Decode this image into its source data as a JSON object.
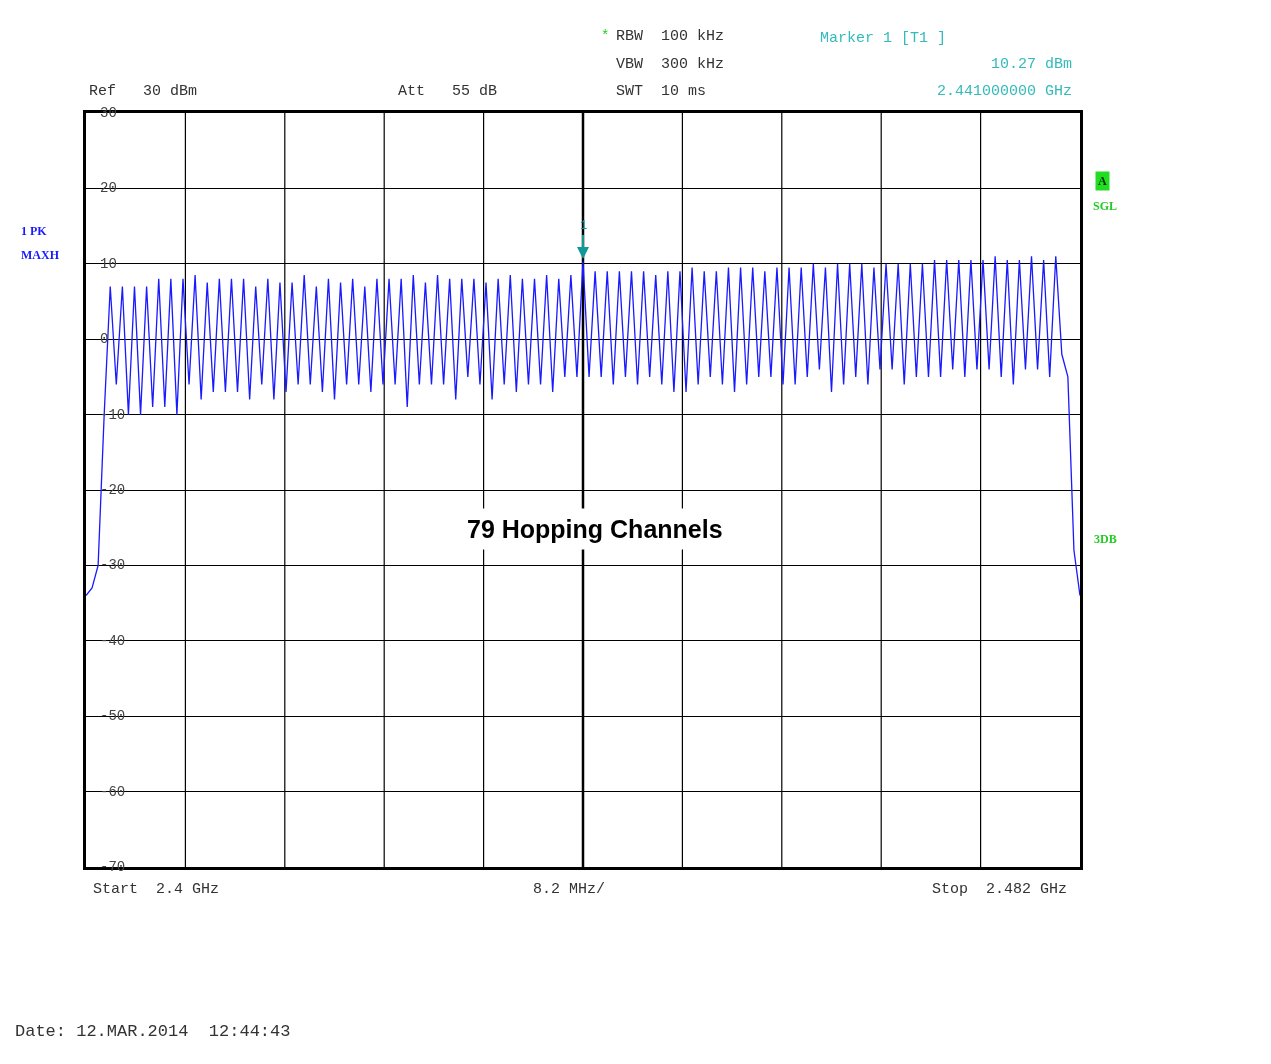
{
  "chart_data": {
    "type": "line",
    "categories": [
      null,
      null,
      null,
      null,
      null,
      null,
      null,
      null,
      null,
      null,
      null,
      null,
      null,
      null,
      null,
      null,
      null,
      null,
      null,
      null,
      null,
      null,
      null,
      null,
      null,
      null,
      null,
      null,
      null,
      null,
      null,
      null,
      null,
      null,
      null,
      null,
      null,
      null,
      null,
      null,
      null,
      null,
      null,
      null,
      null,
      null,
      null,
      null,
      null,
      null,
      null,
      null,
      null,
      null,
      null,
      null,
      null,
      null,
      null,
      null,
      null,
      null,
      null,
      null,
      null,
      null,
      null,
      null,
      null,
      null,
      null,
      null,
      null,
      null,
      null,
      null,
      null,
      null,
      null,
      null,
      null,
      null,
      null,
      null,
      null,
      null,
      null,
      null,
      null,
      null,
      null,
      null,
      null,
      null,
      null,
      null,
      null,
      null,
      null,
      null,
      null,
      null,
      null,
      null,
      null,
      null,
      null,
      null,
      null,
      null,
      null,
      null,
      null,
      null,
      null,
      null,
      null,
      null,
      null,
      null,
      null,
      null,
      null,
      null,
      null,
      null,
      null,
      null,
      null,
      null,
      null,
      null,
      null,
      null,
      null,
      null,
      null,
      null,
      null,
      null,
      null,
      null,
      null,
      null,
      null,
      null,
      null,
      null,
      null,
      null,
      null,
      null,
      null,
      null,
      null,
      null,
      null,
      null,
      null,
      null,
      null,
      null,
      null,
      null,
      null
    ],
    "ylim": [
      -70,
      30
    ],
    "yticks": [
      30,
      20,
      10,
      0,
      -10,
      -20,
      -30,
      -40,
      -50,
      -60,
      -70
    ],
    "tick_labels": "y",
    "grid": true,
    "marker": "none",
    "line_style": "solid",
    "series": [
      {
        "color": "#1a1aff",
        "values": [
          -34,
          -33,
          -30,
          -10,
          7,
          -6,
          7,
          -10,
          7,
          -10,
          7,
          -9,
          8,
          -9,
          8,
          -10,
          8,
          -6,
          8.5,
          -8,
          7.5,
          -7,
          8,
          -7,
          8,
          -7,
          8,
          -8,
          7,
          -6,
          8,
          -8,
          7.5,
          -7,
          7.5,
          -6,
          8.5,
          -6,
          7,
          -7,
          8,
          -8,
          7.5,
          -6,
          8,
          -6,
          7,
          -7,
          8,
          -6,
          8,
          -6,
          8,
          -9,
          8.5,
          -6,
          7.5,
          -6,
          8.5,
          -6,
          8,
          -8,
          8,
          -5,
          8,
          -6,
          7.5,
          -8,
          8,
          -6,
          8.5,
          -7,
          8,
          -6,
          8,
          -6,
          8.5,
          -7,
          8,
          -5,
          8.5,
          -5,
          10.3,
          -5,
          9,
          -5,
          9,
          -6,
          9,
          -5,
          9,
          -6,
          9,
          -5,
          8.5,
          -6,
          9,
          -7,
          9,
          -7,
          9.5,
          -6,
          9,
          -5,
          9,
          -6,
          9.5,
          -7,
          9.5,
          -6,
          9.5,
          -5,
          9,
          -5,
          9.5,
          -6,
          9.5,
          -6,
          9.5,
          -5,
          10,
          -4,
          9.5,
          -7,
          10,
          -6,
          10,
          -5,
          10,
          -6,
          9.5,
          -4,
          10,
          -4,
          10,
          -6,
          10,
          -5,
          10,
          -5,
          10.5,
          -5,
          10.5,
          -4,
          10.5,
          -5,
          10.5,
          -4,
          10.5,
          -4,
          11,
          -5,
          10.5,
          -6,
          10.5,
          -4,
          11,
          -4,
          10.5,
          -5,
          11,
          -2,
          -5,
          -28,
          -34
        ]
      }
    ],
    "annotations": [
      "*",
      "RBW  100 kHz",
      "VBW  300 kHz",
      "SWT  10 ms",
      "Ref   30 dBm",
      "Att   55 dB",
      "Marker 1 [T1 ]",
      "10.27 dBm",
      "2.441000000 GHz",
      "1 PK",
      "MAXH",
      "A",
      "SGL",
      "3DB",
      "Start  2.4 GHz",
      "8.2 MHz/",
      "Stop  2.482 GHz",
      "Date: 12.MAR.2014  12:44:43",
      "79 Hopping Channels",
      "1"
    ]
  }
}
